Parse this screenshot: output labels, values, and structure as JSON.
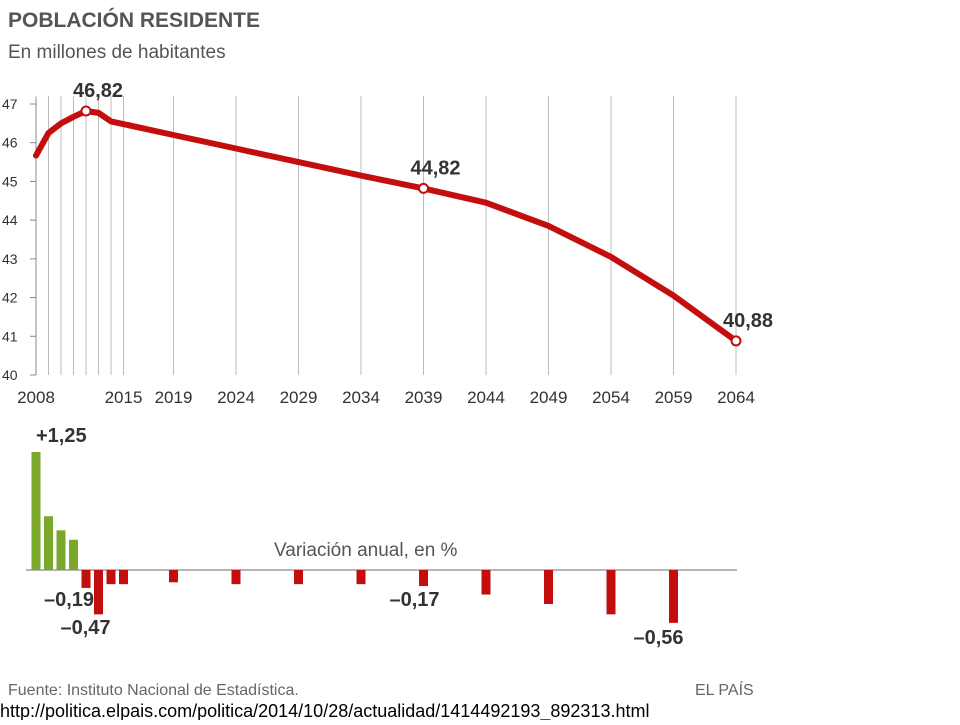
{
  "chart_data": [
    {
      "type": "line",
      "title": "POBLACIÓN RESIDENTE",
      "subtitle": "En millones de habitantes",
      "x_tick_labels": [
        "2008",
        "2015",
        "2019",
        "2024",
        "2029",
        "2034",
        "2039",
        "2044",
        "2049",
        "2054",
        "2059",
        "2064"
      ],
      "y_tick_labels": [
        "47",
        "46",
        "45",
        "44",
        "43",
        "42",
        "41",
        "40"
      ],
      "ylim": [
        40,
        47
      ],
      "xlim": [
        2008,
        2064
      ],
      "grid": true,
      "color": "#c40e0e",
      "series": [
        {
          "points": [
            {
              "x": 2008,
              "y": 45.67
            },
            {
              "x": 2009,
              "y": 46.25
            },
            {
              "x": 2010,
              "y": 46.5
            },
            {
              "x": 2011,
              "y": 46.67
            },
            {
              "x": 2012,
              "y": 46.82
            },
            {
              "x": 2013,
              "y": 46.77
            },
            {
              "x": 2014,
              "y": 46.55
            },
            {
              "x": 2019,
              "y": 46.2
            },
            {
              "x": 2024,
              "y": 45.85
            },
            {
              "x": 2029,
              "y": 45.5
            },
            {
              "x": 2034,
              "y": 45.15
            },
            {
              "x": 2039,
              "y": 44.82
            },
            {
              "x": 2044,
              "y": 44.45
            },
            {
              "x": 2049,
              "y": 43.85
            },
            {
              "x": 2054,
              "y": 43.05
            },
            {
              "x": 2059,
              "y": 42.05
            },
            {
              "x": 2064,
              "y": 40.88
            }
          ]
        }
      ],
      "annotations": [
        {
          "x": 2012,
          "y": 46.82,
          "label": "46,82"
        },
        {
          "x": 2039,
          "y": 44.82,
          "label": "44,82"
        },
        {
          "x": 2064,
          "y": 40.88,
          "label": "40,88"
        }
      ]
    },
    {
      "type": "bar",
      "title": "Variación anual, en %",
      "positive_color": "#7aa82c",
      "negative_color": "#c40e0e",
      "series": [
        {
          "points": [
            {
              "x": 2008,
              "y": 1.25
            },
            {
              "x": 2009,
              "y": 0.57
            },
            {
              "x": 2010,
              "y": 0.42
            },
            {
              "x": 2011,
              "y": 0.32
            },
            {
              "x": 2012,
              "y": -0.19
            },
            {
              "x": 2013,
              "y": -0.47
            },
            {
              "x": 2014,
              "y": -0.15
            },
            {
              "x": 2015,
              "y": -0.15
            },
            {
              "x": 2019,
              "y": -0.13
            },
            {
              "x": 2024,
              "y": -0.15
            },
            {
              "x": 2029,
              "y": -0.15
            },
            {
              "x": 2034,
              "y": -0.15
            },
            {
              "x": 2039,
              "y": -0.17
            },
            {
              "x": 2044,
              "y": -0.26
            },
            {
              "x": 2049,
              "y": -0.36
            },
            {
              "x": 2054,
              "y": -0.47
            },
            {
              "x": 2059,
              "y": -0.56
            }
          ]
        }
      ],
      "annotations": [
        {
          "x": 2008,
          "y": 1.25,
          "label": "+1,25"
        },
        {
          "x": 2012,
          "y": -0.19,
          "label": "–0,19"
        },
        {
          "x": 2013,
          "y": -0.47,
          "label": "–0,47"
        },
        {
          "x": 2039,
          "y": -0.17,
          "label": "–0,17"
        },
        {
          "x": 2059,
          "y": -0.56,
          "label": "–0,56"
        }
      ]
    }
  ],
  "footer": {
    "source": "Fuente: Instituto Nacional de Estadística.",
    "brand": "EL PAÍS",
    "url": "http://politica.elpais.com/politica/2014/10/28/actualidad/1414492193_892313.html"
  }
}
